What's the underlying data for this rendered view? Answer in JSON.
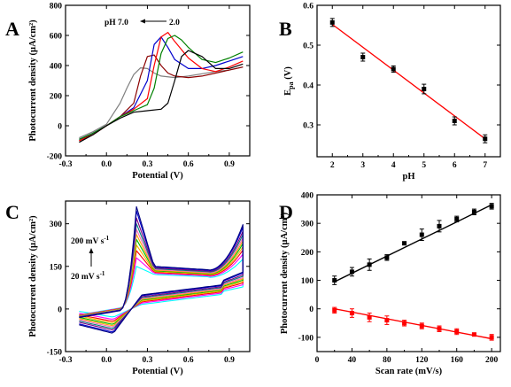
{
  "colors": {
    "axis": "#000000",
    "fit_red": "#ff0000",
    "series_D_red": "#ff0000",
    "series_D_black": "#000000"
  },
  "chart_data": [
    {
      "panel": "A",
      "type": "line",
      "xlabel": "Potential (V)",
      "ylabel": "Photocurrent density (µA/cm²)",
      "xlim": [
        -0.3,
        1.05
      ],
      "ylim": [
        -200,
        800
      ],
      "xticks": [
        -0.3,
        0.0,
        0.3,
        0.6,
        0.9
      ],
      "xtick_labels": [
        "-0.3",
        "0.0",
        "0.3",
        "0.6",
        "0.9"
      ],
      "yticks": [
        -200,
        0,
        200,
        400,
        600,
        800
      ],
      "ytick_labels": [
        "-200",
        "0",
        "200",
        "400",
        "600",
        "800"
      ],
      "annotation": {
        "left": "pH 7.0",
        "right": "2.0"
      },
      "series": [
        {
          "color": "#808080",
          "x": [
            -0.2,
            -0.1,
            0.0,
            0.1,
            0.15,
            0.2,
            0.25,
            0.3,
            0.35,
            0.4,
            0.5,
            0.6,
            0.7,
            0.8,
            0.9,
            1.0
          ],
          "y": [
            -80,
            -40,
            10,
            150,
            250,
            340,
            385,
            380,
            350,
            330,
            320,
            330,
            345,
            360,
            370,
            390
          ]
        },
        {
          "color": "#8b0000",
          "x": [
            -0.2,
            -0.1,
            0.0,
            0.1,
            0.2,
            0.25,
            0.3,
            0.35,
            0.4,
            0.45,
            0.5,
            0.6,
            0.7,
            0.8,
            0.9,
            1.0
          ],
          "y": [
            -100,
            -50,
            0,
            60,
            150,
            330,
            460,
            470,
            400,
            350,
            330,
            320,
            330,
            350,
            370,
            390
          ]
        },
        {
          "color": "#0000cd",
          "x": [
            -0.2,
            -0.1,
            0.0,
            0.1,
            0.2,
            0.3,
            0.35,
            0.4,
            0.45,
            0.5,
            0.6,
            0.7,
            0.8,
            0.9,
            1.0
          ],
          "y": [
            -90,
            -50,
            0,
            60,
            120,
            300,
            540,
            590,
            520,
            440,
            380,
            380,
            400,
            430,
            460
          ]
        },
        {
          "color": "#ff0000",
          "x": [
            -0.2,
            -0.1,
            0.0,
            0.1,
            0.2,
            0.3,
            0.35,
            0.4,
            0.45,
            0.5,
            0.6,
            0.7,
            0.8,
            0.9,
            1.0
          ],
          "y": [
            -100,
            -60,
            0,
            60,
            110,
            180,
            400,
            590,
            620,
            560,
            450,
            380,
            360,
            390,
            430
          ]
        },
        {
          "color": "#008000",
          "x": [
            -0.2,
            -0.1,
            0.0,
            0.1,
            0.2,
            0.3,
            0.35,
            0.4,
            0.45,
            0.5,
            0.55,
            0.6,
            0.7,
            0.8,
            0.9,
            1.0
          ],
          "y": [
            -90,
            -50,
            0,
            60,
            100,
            140,
            250,
            480,
            580,
            600,
            570,
            520,
            440,
            420,
            450,
            490
          ]
        },
        {
          "color": "#000000",
          "x": [
            -0.2,
            -0.1,
            0.0,
            0.1,
            0.2,
            0.3,
            0.4,
            0.45,
            0.5,
            0.55,
            0.6,
            0.7,
            0.8,
            0.9,
            1.0
          ],
          "y": [
            -110,
            -60,
            0,
            50,
            90,
            100,
            110,
            150,
            300,
            460,
            500,
            460,
            380,
            380,
            410
          ]
        }
      ]
    },
    {
      "panel": "B",
      "type": "scatter",
      "xlabel": "pH",
      "ylabel": "E",
      "ylabel_sub": "pa",
      "ylabel_unit": " (V)",
      "xlim": [
        1.5,
        7.5
      ],
      "ylim": [
        0.22,
        0.6
      ],
      "xticks": [
        2,
        3,
        4,
        5,
        6,
        7
      ],
      "xtick_labels": [
        "2",
        "3",
        "4",
        "5",
        "6",
        "7"
      ],
      "yticks": [
        0.3,
        0.4,
        0.5,
        0.6
      ],
      "ytick_labels": [
        "0.3",
        "0.4",
        "0.5",
        "0.6"
      ],
      "points": {
        "x": [
          2,
          3,
          4,
          5,
          6,
          7
        ],
        "y": [
          0.557,
          0.47,
          0.44,
          0.39,
          0.31,
          0.265
        ],
        "err": [
          0.01,
          0.01,
          0.008,
          0.012,
          0.01,
          0.01
        ]
      },
      "fit": {
        "x": [
          2,
          7
        ],
        "y": [
          0.552,
          0.265
        ],
        "color": "#ff0000"
      }
    },
    {
      "panel": "C",
      "type": "line",
      "xlabel": "Potential (V)",
      "ylabel": "Photocurrent density (µA/cm²)",
      "xlim": [
        -0.3,
        1.05
      ],
      "ylim": [
        -150,
        380
      ],
      "xticks": [
        -0.3,
        0.0,
        0.3,
        0.6,
        0.9
      ],
      "xtick_labels": [
        "-0.3",
        "0.0",
        "0.3",
        "0.6",
        "0.9"
      ],
      "yticks": [
        -150,
        0,
        150,
        300
      ],
      "ytick_labels": [
        "-150",
        "0",
        "150",
        "300"
      ],
      "annotation": {
        "top": "200 mV s",
        "top_sup": "-1",
        "bottom": "20 mV s",
        "bottom_sup": "-1"
      },
      "scan_peaks": [
        150,
        180,
        205,
        225,
        245,
        262,
        280,
        300,
        320,
        345,
        360
      ],
      "colors": [
        "#00ffff",
        "#ff00ff",
        "#ff0000",
        "#ffb000",
        "#00c000",
        "#ffa500",
        "#ff69b4",
        "#008080",
        "#800080",
        "#0000cd",
        "#000080"
      ]
    },
    {
      "panel": "D",
      "type": "scatter",
      "xlabel": "Scan rate (mV/s)",
      "ylabel": "Photocurrent density (µA/cm²)",
      "xlim": [
        0,
        210
      ],
      "ylim": [
        -150,
        400
      ],
      "xticks": [
        0,
        40,
        80,
        120,
        160,
        200
      ],
      "xtick_labels": [
        "0",
        "40",
        "80",
        "120",
        "160",
        "200"
      ],
      "yticks": [
        -100,
        0,
        100,
        200,
        300,
        400
      ],
      "ytick_labels": [
        "-100",
        "0",
        "100",
        "200",
        "300",
        "400"
      ],
      "series": [
        {
          "color": "#000000",
          "x": [
            20,
            40,
            60,
            80,
            100,
            120,
            140,
            160,
            180,
            200
          ],
          "y": [
            100,
            130,
            155,
            180,
            230,
            260,
            290,
            315,
            340,
            360
          ],
          "err": [
            15,
            15,
            20,
            10,
            5,
            20,
            20,
            10,
            10,
            10
          ],
          "fit": [
            [
              20,
              200
            ],
            [
              95,
              365
            ]
          ]
        },
        {
          "color": "#ff0000",
          "x": [
            20,
            40,
            60,
            80,
            100,
            120,
            140,
            160,
            180,
            200
          ],
          "y": [
            -5,
            -15,
            -30,
            -40,
            -50,
            -60,
            -70,
            -80,
            -90,
            -100
          ],
          "err": [
            10,
            15,
            15,
            15,
            10,
            10,
            10,
            10,
            5,
            10
          ],
          "fit": [
            [
              20,
              200
            ],
            [
              0,
              -105
            ]
          ]
        }
      ]
    }
  ],
  "panel_letters": [
    "A",
    "B",
    "C",
    "D"
  ]
}
